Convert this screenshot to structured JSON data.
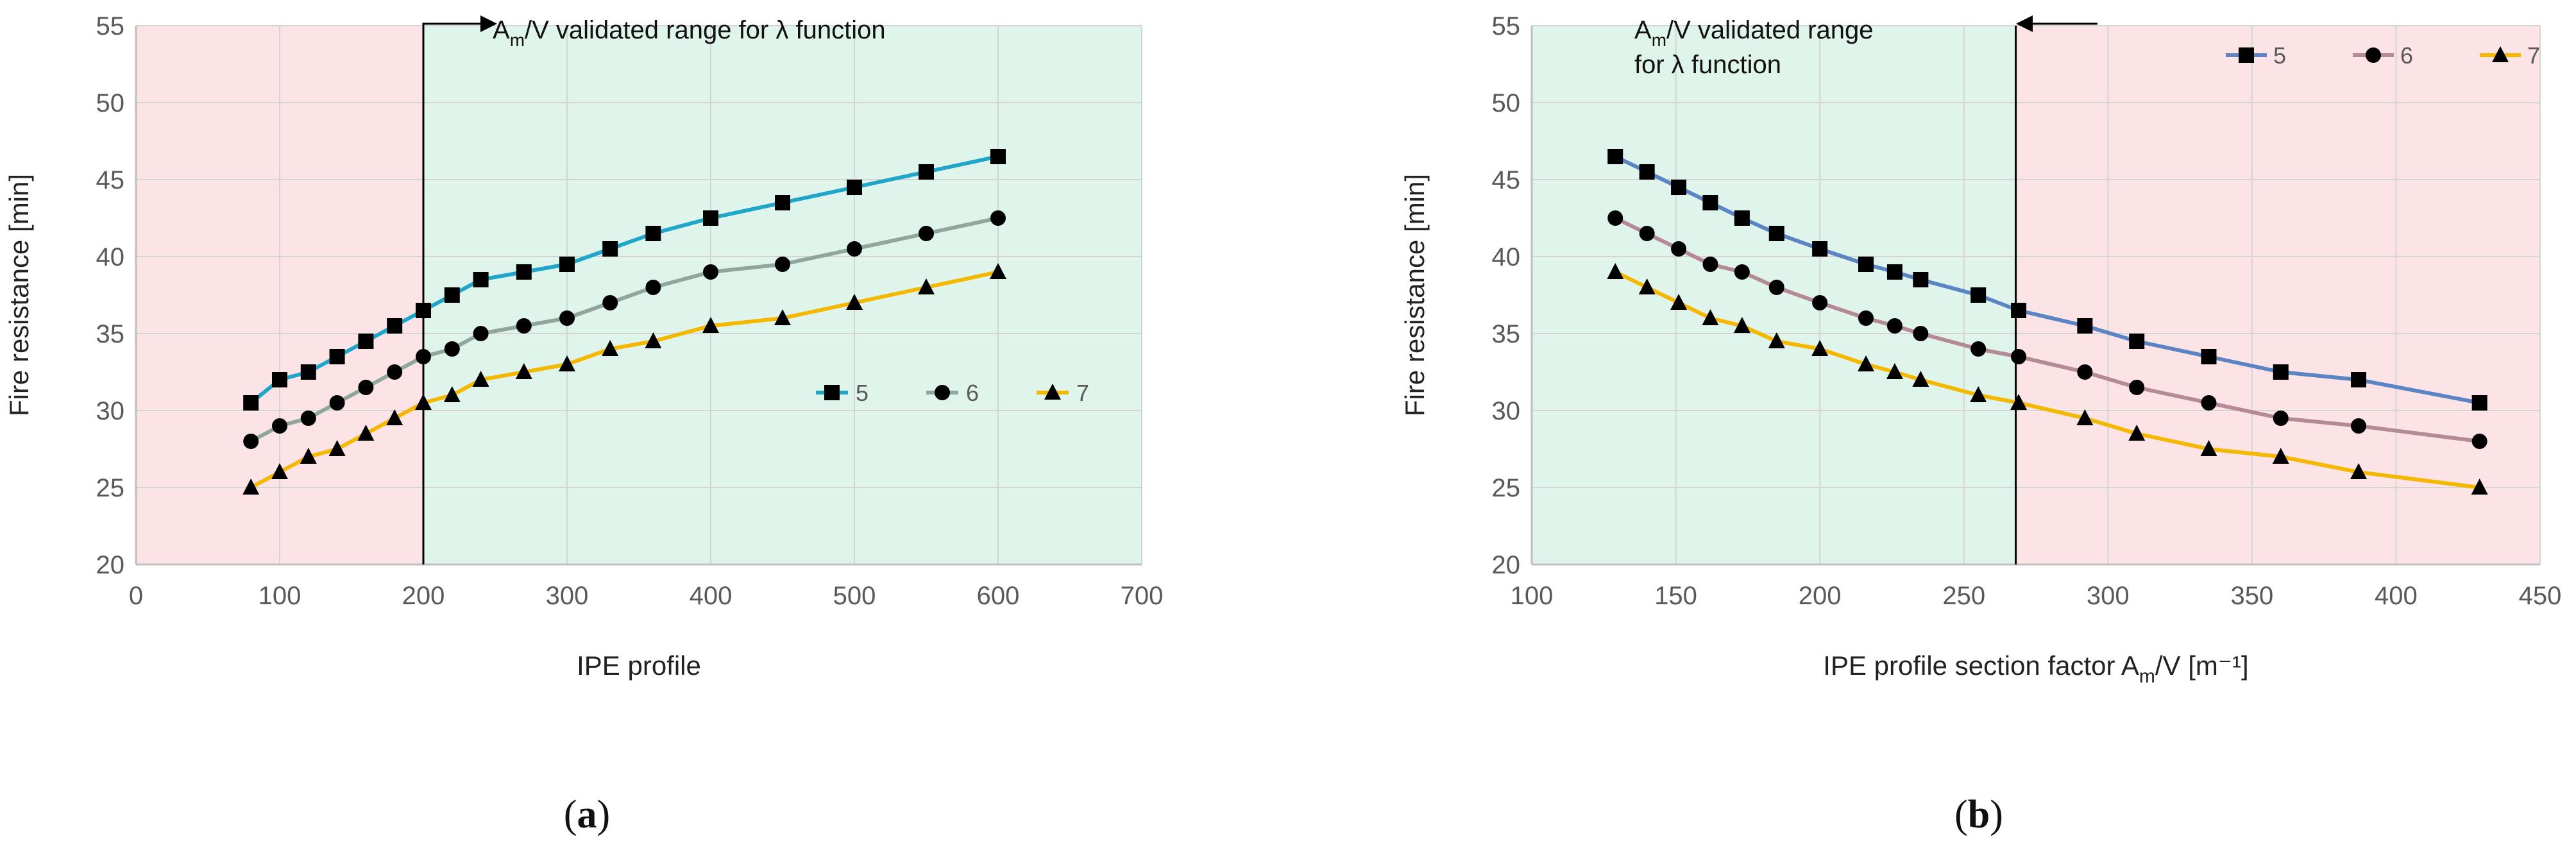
{
  "chart_data": [
    {
      "id": "a",
      "type": "line",
      "caption": "(a)",
      "caption_open": "(",
      "caption_letter": "a",
      "caption_close": ")",
      "xlabel": "IPE profile",
      "ylabel": "Fire resistance [min]",
      "xlim": [
        0,
        700
      ],
      "ylim": [
        20,
        55
      ],
      "xticks": [
        0,
        100,
        200,
        300,
        400,
        500,
        600,
        700
      ],
      "yticks": [
        20,
        25,
        30,
        35,
        40,
        45,
        50,
        55
      ],
      "grid": true,
      "regions": [
        {
          "from": 0,
          "to": 200,
          "color": "#fce4e6"
        },
        {
          "from": 200,
          "to": 700,
          "color": "#dff5ec"
        }
      ],
      "boundary_x": 200,
      "annotation": {
        "lines": [
          "A_m/V validated range for λ function"
        ],
        "base": "A",
        "sub": "m",
        "rest": "/V validated range for λ function",
        "arrow": "right"
      },
      "legend_position": "middle-right",
      "series": [
        {
          "name": "5",
          "marker": "square",
          "color": "#1fa6c9",
          "x": [
            80,
            100,
            120,
            140,
            160,
            180,
            200,
            220,
            240,
            270,
            300,
            330,
            360,
            400,
            450,
            500,
            550,
            600
          ],
          "y": [
            30.5,
            32,
            32.5,
            33.5,
            34.5,
            35.5,
            36.5,
            37.5,
            38.5,
            39,
            39.5,
            40.5,
            41.5,
            42.5,
            43.5,
            44.5,
            45.5,
            46.5
          ]
        },
        {
          "name": "6",
          "marker": "circle",
          "color": "#8fa79b",
          "x": [
            80,
            100,
            120,
            140,
            160,
            180,
            200,
            220,
            240,
            270,
            300,
            330,
            360,
            400,
            450,
            500,
            550,
            600
          ],
          "y": [
            28,
            29,
            29.5,
            30.5,
            31.5,
            32.5,
            33.5,
            34,
            35,
            35.5,
            36,
            37,
            38,
            39,
            39.5,
            40.5,
            41.5,
            42.5
          ]
        },
        {
          "name": "7",
          "marker": "triangle",
          "color": "#f5b800",
          "x": [
            80,
            100,
            120,
            140,
            160,
            180,
            200,
            220,
            240,
            270,
            300,
            330,
            360,
            400,
            450,
            500,
            550,
            600
          ],
          "y": [
            25,
            26,
            27,
            27.5,
            28.5,
            29.5,
            30.5,
            31,
            32,
            32.5,
            33,
            34,
            34.5,
            35.5,
            36,
            37,
            38,
            39
          ]
        }
      ]
    },
    {
      "id": "b",
      "type": "line",
      "caption": "(b)",
      "caption_open": "(",
      "caption_letter": "b",
      "caption_close": ")",
      "xlabel": "IPE profile section factor A_m/V [m⁻¹]",
      "xlabel_parts": {
        "pre": "IPE profile section factor A",
        "sub": "m",
        "post": "/V [m⁻¹]"
      },
      "ylabel": "Fire resistance [min]",
      "xlim": [
        100,
        450
      ],
      "ylim": [
        20,
        55
      ],
      "xticks": [
        100,
        150,
        200,
        250,
        300,
        350,
        400,
        450
      ],
      "yticks": [
        20,
        25,
        30,
        35,
        40,
        45,
        50,
        55
      ],
      "grid": true,
      "regions": [
        {
          "from": 100,
          "to": 268,
          "color": "#dff5ec"
        },
        {
          "from": 268,
          "to": 450,
          "color": "#fce4e6"
        }
      ],
      "boundary_x": 268,
      "annotation": {
        "lines": [
          "A_m/V validated range",
          "for λ function"
        ],
        "base": "A",
        "sub": "m",
        "rest": "/V validated range",
        "line2": "for λ function",
        "arrow": "left"
      },
      "legend_position": "top-right",
      "series": [
        {
          "name": "5",
          "marker": "square",
          "color": "#5b84c4",
          "x": [
            129,
            140,
            151,
            162,
            173,
            185,
            200,
            216,
            226,
            235,
            255,
            269,
            292,
            310,
            335,
            360,
            387,
            429
          ],
          "y": [
            46.5,
            45.5,
            44.5,
            43.5,
            42.5,
            41.5,
            40.5,
            39.5,
            39,
            38.5,
            37.5,
            36.5,
            35.5,
            34.5,
            33.5,
            32.5,
            32,
            30.5
          ]
        },
        {
          "name": "6",
          "marker": "circle",
          "color": "#b48a95",
          "x": [
            129,
            140,
            151,
            162,
            173,
            185,
            200,
            216,
            226,
            235,
            255,
            269,
            292,
            310,
            335,
            360,
            387,
            429
          ],
          "y": [
            42.5,
            41.5,
            40.5,
            39.5,
            39,
            38,
            37,
            36,
            35.5,
            35,
            34,
            33.5,
            32.5,
            31.5,
            30.5,
            29.5,
            29,
            28
          ]
        },
        {
          "name": "7",
          "marker": "triangle",
          "color": "#f5b800",
          "x": [
            129,
            140,
            151,
            162,
            173,
            185,
            200,
            216,
            226,
            235,
            255,
            269,
            292,
            310,
            335,
            360,
            387,
            429
          ],
          "y": [
            39,
            38,
            37,
            36,
            35.5,
            34.5,
            34,
            33,
            32.5,
            32,
            31,
            30.5,
            29.5,
            28.5,
            27.5,
            27,
            26,
            25
          ]
        }
      ]
    }
  ]
}
